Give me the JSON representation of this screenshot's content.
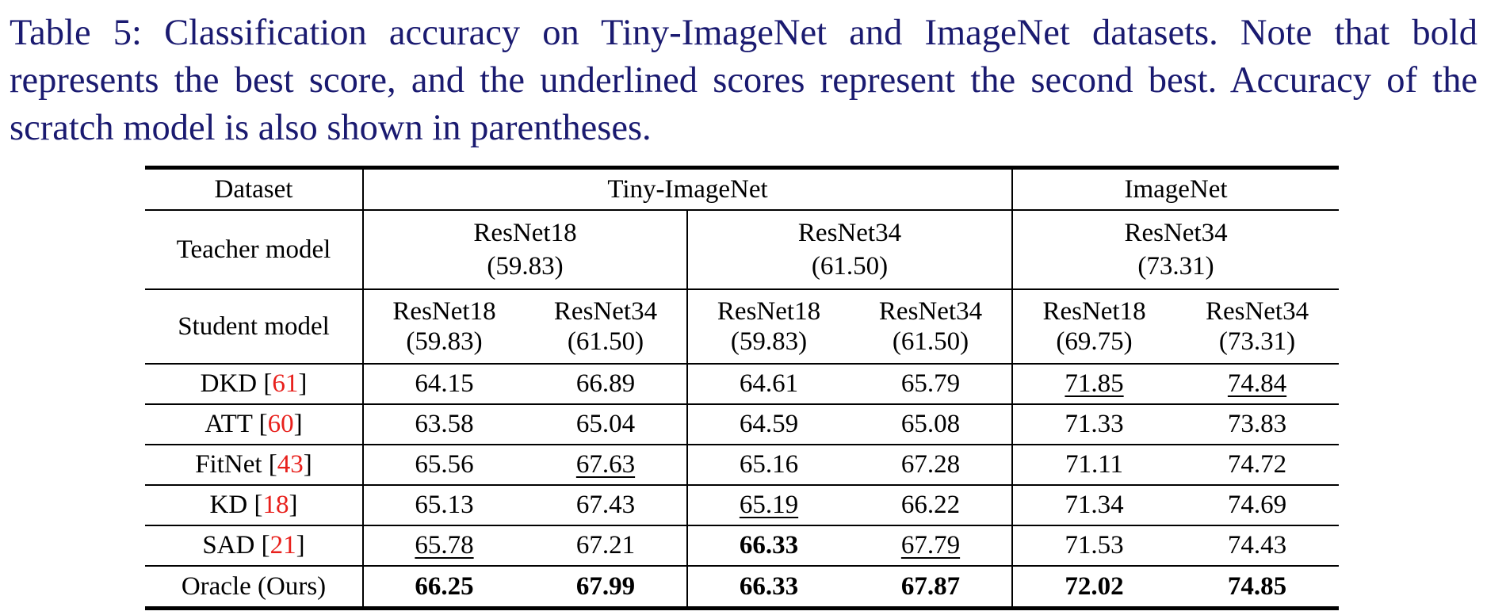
{
  "caption": {
    "text": "Table 5: Classification accuracy on Tiny-ImageNet and ImageNet datasets. Note that bold represents the best score, and the underlined scores represent the second best. Accuracy of the scratch model is also shown in parentheses."
  },
  "table": {
    "dataset_label": "Dataset",
    "datasets": [
      "Tiny-ImageNet",
      "ImageNet"
    ],
    "teacher_label": "Teacher model",
    "teachers": [
      {
        "name": "ResNet18",
        "acc": "(59.83)"
      },
      {
        "name": "ResNet34",
        "acc": "(61.50)"
      },
      {
        "name": "ResNet34",
        "acc": "(73.31)"
      }
    ],
    "student_label": "Student model",
    "students": [
      {
        "name": "ResNet18",
        "acc": "(59.83)"
      },
      {
        "name": "ResNet34",
        "acc": "(61.50)"
      },
      {
        "name": "ResNet18",
        "acc": "(59.83)"
      },
      {
        "name": "ResNet34",
        "acc": "(61.50)"
      },
      {
        "name": "ResNet18",
        "acc": "(69.75)"
      },
      {
        "name": "ResNet34",
        "acc": "(73.31)"
      }
    ],
    "rows": [
      {
        "method": "DKD [",
        "ref": "61",
        "close": "]",
        "cells": [
          {
            "v": "64.15",
            "s": ""
          },
          {
            "v": "66.89",
            "s": ""
          },
          {
            "v": "64.61",
            "s": ""
          },
          {
            "v": "65.79",
            "s": ""
          },
          {
            "v": "71.85",
            "s": "underline"
          },
          {
            "v": "74.84",
            "s": "underline"
          }
        ]
      },
      {
        "method": "ATT [",
        "ref": "60",
        "close": "]",
        "cells": [
          {
            "v": "63.58",
            "s": ""
          },
          {
            "v": "65.04",
            "s": ""
          },
          {
            "v": "64.59",
            "s": ""
          },
          {
            "v": "65.08",
            "s": ""
          },
          {
            "v": "71.33",
            "s": ""
          },
          {
            "v": "73.83",
            "s": ""
          }
        ]
      },
      {
        "method": "FitNet [",
        "ref": "43",
        "close": "]",
        "cells": [
          {
            "v": "65.56",
            "s": ""
          },
          {
            "v": "67.63",
            "s": "underline"
          },
          {
            "v": "65.16",
            "s": ""
          },
          {
            "v": "67.28",
            "s": ""
          },
          {
            "v": "71.11",
            "s": ""
          },
          {
            "v": "74.72",
            "s": ""
          }
        ]
      },
      {
        "method": "KD [",
        "ref": "18",
        "close": "]",
        "cells": [
          {
            "v": "65.13",
            "s": ""
          },
          {
            "v": "67.43",
            "s": ""
          },
          {
            "v": "65.19",
            "s": "underline"
          },
          {
            "v": "66.22",
            "s": ""
          },
          {
            "v": "71.34",
            "s": ""
          },
          {
            "v": "74.69",
            "s": ""
          }
        ]
      },
      {
        "method": "SAD [",
        "ref": "21",
        "close": "]",
        "cells": [
          {
            "v": "65.78",
            "s": "underline"
          },
          {
            "v": "67.21",
            "s": ""
          },
          {
            "v": "66.33",
            "s": "bold"
          },
          {
            "v": "67.79",
            "s": "underline"
          },
          {
            "v": "71.53",
            "s": ""
          },
          {
            "v": "74.43",
            "s": ""
          }
        ]
      },
      {
        "method": "Oracle (Ours)",
        "ref": "",
        "close": "",
        "cells": [
          {
            "v": "66.25",
            "s": "bold"
          },
          {
            "v": "67.99",
            "s": "bold"
          },
          {
            "v": "66.33",
            "s": "bold"
          },
          {
            "v": "67.87",
            "s": "bold"
          },
          {
            "v": "72.02",
            "s": "bold"
          },
          {
            "v": "74.85",
            "s": "bold"
          }
        ]
      }
    ]
  },
  "colors": {
    "caption": "#1a1a70",
    "citation": "#e8201c",
    "rule": "#000000"
  }
}
